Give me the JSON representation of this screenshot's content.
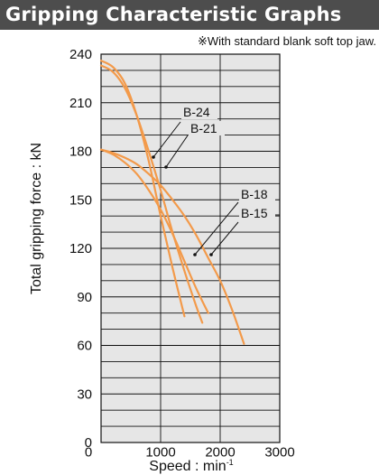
{
  "header": {
    "title": "Gripping Characteristic Graphs"
  },
  "note": "※With standard blank soft top jaw.",
  "colors": {
    "curve": "#f39a4a",
    "plot_bg": "#e6e6e6",
    "header_bg": "#4d4d4d",
    "grid": "#111111"
  },
  "chart_data": {
    "type": "line",
    "title": "Gripping Characteristic Graphs",
    "xlabel": "Speed : min",
    "xlabel_superscript": "-1",
    "ylabel": "Total gripping force : kN",
    "xlim": [
      0,
      3000
    ],
    "ylim": [
      0,
      240
    ],
    "x_ticks": [
      "0",
      "1000",
      "2000",
      "3000"
    ],
    "y_ticks": [
      "0",
      "30",
      "60",
      "90",
      "120",
      "150",
      "180",
      "210",
      "240"
    ],
    "grid": true,
    "series": [
      {
        "name": "B-24",
        "x": [
          0,
          200,
          400,
          600,
          800,
          1000,
          1200,
          1400
        ],
        "y": [
          236,
          232,
          222,
          202,
          174,
          140,
          108,
          78
        ]
      },
      {
        "name": "B-21",
        "x": [
          0,
          200,
          400,
          600,
          800,
          1000,
          1200,
          1400,
          1600,
          1700
        ],
        "y": [
          233,
          229,
          219,
          202,
          180,
          156,
          130,
          106,
          84,
          74
        ]
      },
      {
        "name": "B-18",
        "x": [
          0,
          200,
          400,
          600,
          800,
          1000,
          1200,
          1400,
          1600,
          1800
        ],
        "y": [
          181,
          178,
          173,
          166,
          156,
          144,
          129,
          112,
          95,
          80
        ]
      },
      {
        "name": "B-15",
        "x": [
          0,
          200,
          400,
          600,
          800,
          1000,
          1200,
          1400,
          1600,
          1800,
          2000,
          2200,
          2400
        ],
        "y": [
          181,
          179,
          176,
          172,
          166,
          159,
          150,
          140,
          128,
          114,
          100,
          82,
          61
        ]
      }
    ]
  }
}
